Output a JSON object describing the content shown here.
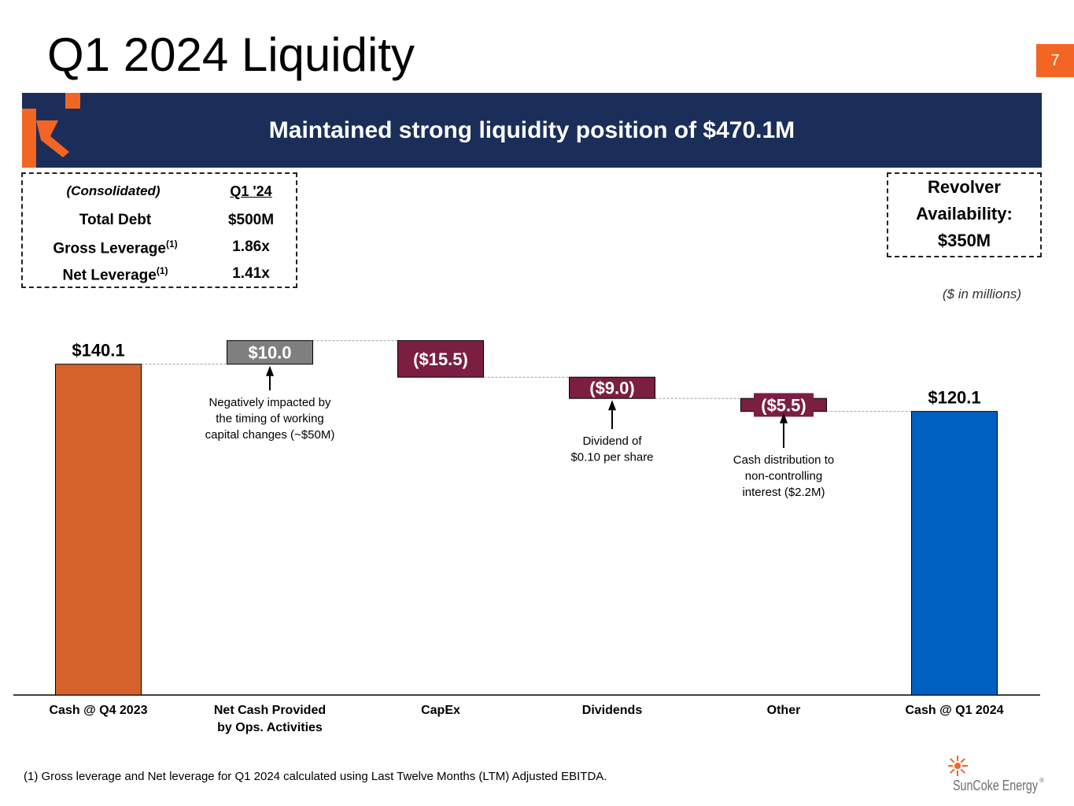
{
  "title": "Q1 2024 Liquidity",
  "page_number": "7",
  "banner": {
    "text": "Maintained strong liquidity position of $470.1M",
    "color": "#1b2e5a"
  },
  "debt_table": {
    "header_label": "(Consolidated)",
    "header_period": "Q1 '24",
    "rows": [
      {
        "label": "Total Debt",
        "sup": "",
        "value": "$500M"
      },
      {
        "label": "Gross Leverage",
        "sup": "(1)",
        "value": "1.86x"
      },
      {
        "label": "Net Leverage",
        "sup": "(1)",
        "value": "1.41x"
      }
    ]
  },
  "revolver": {
    "line1": "Revolver",
    "line2": "Availability:",
    "line3": "$350M"
  },
  "units_note": "($ in millions)",
  "annotations": [
    {
      "category": "Net Cash Provided by Ops. Activities",
      "lines": [
        "Negatively impacted by",
        "the timing of working",
        "capital changes (~$50M)"
      ]
    },
    {
      "category": "Dividends",
      "lines": [
        "Dividend of",
        "$0.10 per share"
      ]
    },
    {
      "category": "Other",
      "lines": [
        "Cash distribution to",
        "non-controlling",
        "interest ($2.2M)"
      ]
    }
  ],
  "footnote": "(1)  Gross leverage and Net leverage for Q1 2024 calculated using Last Twelve Months (LTM) Adjusted EBITDA.",
  "logo": {
    "text": "SunCoke Energy",
    "mark": "®"
  },
  "colors": {
    "start": "#d5622b",
    "increase": "#7f7f7f",
    "decrease": "#7b1e42",
    "end": "#0060bf",
    "accent": "#f26522"
  },
  "chart_data": {
    "type": "waterfall",
    "categories": [
      "Cash @ Q4 2023",
      "Net Cash Provided\nby Ops. Activities",
      "CapEx",
      "Dividends",
      "Other",
      "Cash @ Q1 2024"
    ],
    "values": [
      140.1,
      10.0,
      -15.5,
      -9.0,
      -5.5,
      120.1
    ],
    "kinds": [
      "total",
      "delta",
      "delta",
      "delta",
      "delta",
      "total"
    ],
    "labels": [
      "$140.1",
      "$10.0",
      "($15.5)",
      "($9.0)",
      "($5.5)",
      "$120.1"
    ],
    "ylim": [
      0,
      150
    ],
    "title": "",
    "xlabel": "",
    "ylabel": ""
  }
}
